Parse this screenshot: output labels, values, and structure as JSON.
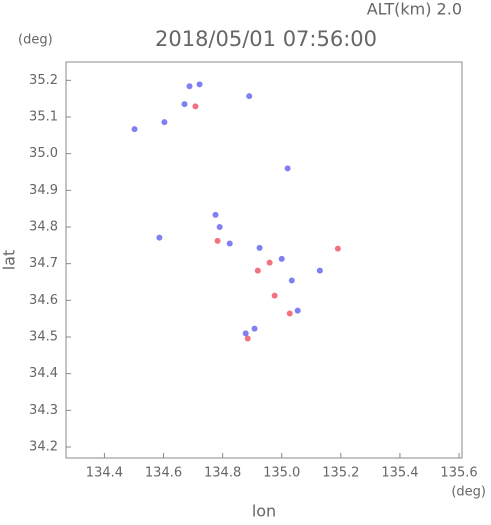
{
  "chart_data": {
    "type": "scatter",
    "title": "2018/05/01 07:56:00",
    "subtitle": "ALT(km) 2.0",
    "x_label": "lon",
    "y_label": "lat",
    "x_unit": "(deg)",
    "y_unit": "(deg)",
    "xlim": [
      134.27,
      135.61
    ],
    "ylim": [
      34.17,
      35.25
    ],
    "xticks": [
      134.4,
      134.6,
      134.8,
      {
        "value": 135,
        "label": "135.0"
      },
      135.2,
      135.4,
      135.6
    ],
    "yticks": [
      34.2,
      34.3,
      34.4,
      34.5,
      34.6,
      34.7,
      34.8,
      34.9,
      {
        "value": 35,
        "label": "35.0"
      },
      35.1,
      35.2
    ],
    "series": [
      {
        "color": "#6a6af0",
        "x": [
          134.688,
          134.722,
          134.671,
          134.603,
          135.02,
          134.776,
          134.586,
          134.824,
          134.925,
          135.034,
          134.878,
          134.908,
          135.054,
          135.129,
          134.502,
          134.79,
          135.0,
          134.89
        ],
        "y": [
          35.184,
          35.189,
          35.135,
          35.086,
          34.96,
          34.833,
          34.771,
          34.755,
          34.743,
          34.654,
          34.51,
          34.523,
          34.572,
          34.681,
          35.067,
          34.8,
          34.713,
          35.157
        ]
      },
      {
        "color": "#f05a6a",
        "x": [
          134.783,
          135.19,
          134.959,
          134.976,
          134.885,
          134.708,
          135.027,
          134.919
        ],
        "y": [
          34.762,
          34.741,
          34.703,
          34.613,
          34.496,
          35.129,
          34.564,
          34.681
        ]
      }
    ]
  }
}
